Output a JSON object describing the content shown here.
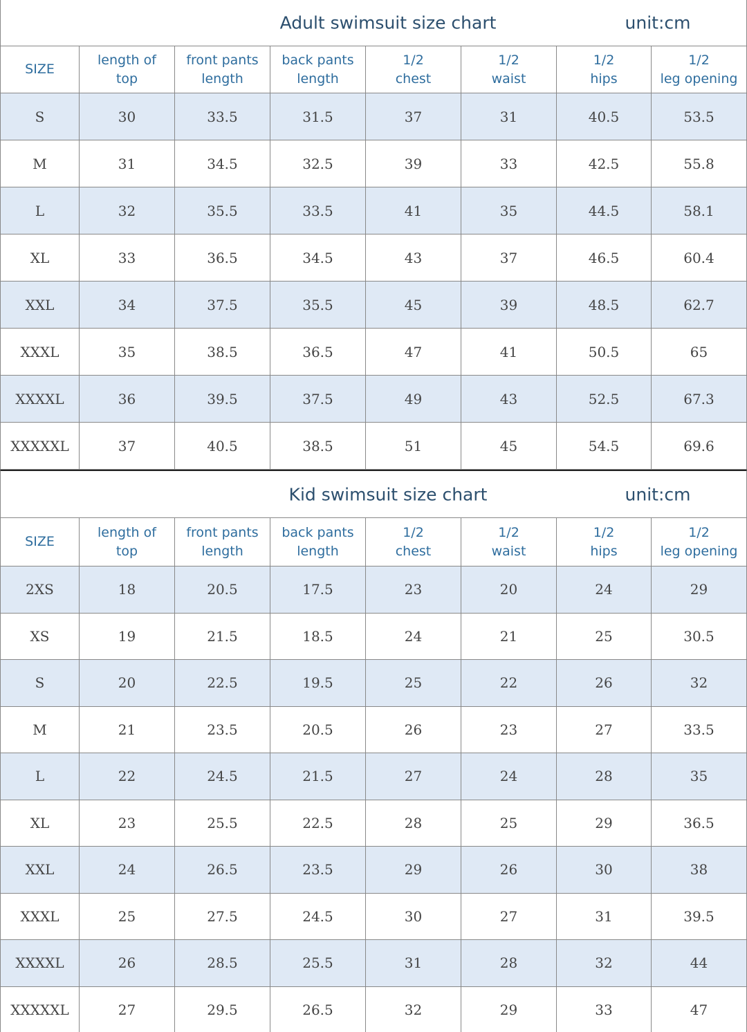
{
  "sections": [
    {
      "title": "Adult swimsuit size chart",
      "unit": "unit:cm",
      "header": [
        [
          "SIZE"
        ],
        [
          "length of",
          "top"
        ],
        [
          "front pants",
          "length"
        ],
        [
          "back pants",
          "length"
        ],
        [
          "1/2",
          "chest"
        ],
        [
          "1/2",
          "waist"
        ],
        [
          "1/2",
          "hips"
        ],
        [
          "1/2",
          "leg opening"
        ]
      ],
      "rows": [
        [
          "S",
          "30",
          "33.5",
          "31.5",
          "37",
          "31",
          "40.5",
          "53.5"
        ],
        [
          "M",
          "31",
          "34.5",
          "32.5",
          "39",
          "33",
          "42.5",
          "55.8"
        ],
        [
          "L",
          "32",
          "35.5",
          "33.5",
          "41",
          "35",
          "44.5",
          "58.1"
        ],
        [
          "XL",
          "33",
          "36.5",
          "34.5",
          "43",
          "37",
          "46.5",
          "60.4"
        ],
        [
          "XXL",
          "34",
          "37.5",
          "35.5",
          "45",
          "39",
          "48.5",
          "62.7"
        ],
        [
          "XXXL",
          "35",
          "38.5",
          "36.5",
          "47",
          "41",
          "50.5",
          "65"
        ],
        [
          "XXXXL",
          "36",
          "39.5",
          "37.5",
          "49",
          "43",
          "52.5",
          "67.3"
        ],
        [
          "XXXXXL",
          "37",
          "40.5",
          "38.5",
          "51",
          "45",
          "54.5",
          "69.6"
        ]
      ]
    },
    {
      "title": "Kid swimsuit size chart",
      "unit": "unit:cm",
      "header": [
        [
          "SIZE"
        ],
        [
          "length of",
          "top"
        ],
        [
          "front pants",
          "length"
        ],
        [
          "back pants",
          "length"
        ],
        [
          "1/2",
          "chest"
        ],
        [
          "1/2",
          "waist"
        ],
        [
          "1/2",
          "hips"
        ],
        [
          "1/2",
          "leg opening"
        ]
      ],
      "rows": [
        [
          "2XS",
          "18",
          "20.5",
          "17.5",
          "23",
          "20",
          "24",
          "29"
        ],
        [
          "XS",
          "19",
          "21.5",
          "18.5",
          "24",
          "21",
          "25",
          "30.5"
        ],
        [
          "S",
          "20",
          "22.5",
          "19.5",
          "25",
          "22",
          "26",
          "32"
        ],
        [
          "M",
          "21",
          "23.5",
          "20.5",
          "26",
          "23",
          "27",
          "33.5"
        ],
        [
          "L",
          "22",
          "24.5",
          "21.5",
          "27",
          "24",
          "28",
          "35"
        ],
        [
          "XL",
          "23",
          "25.5",
          "22.5",
          "28",
          "25",
          "29",
          "36.5"
        ],
        [
          "XXL",
          "24",
          "26.5",
          "23.5",
          "29",
          "26",
          "30",
          "38"
        ],
        [
          "XXXL",
          "25",
          "27.5",
          "24.5",
          "30",
          "27",
          "31",
          "39.5"
        ],
        [
          "XXXXL",
          "26",
          "28.5",
          "25.5",
          "31",
          "28",
          "32",
          "44"
        ],
        [
          "XXXXXL",
          "27",
          "29.5",
          "26.5",
          "32",
          "29",
          "33",
          "47"
        ]
      ]
    }
  ]
}
